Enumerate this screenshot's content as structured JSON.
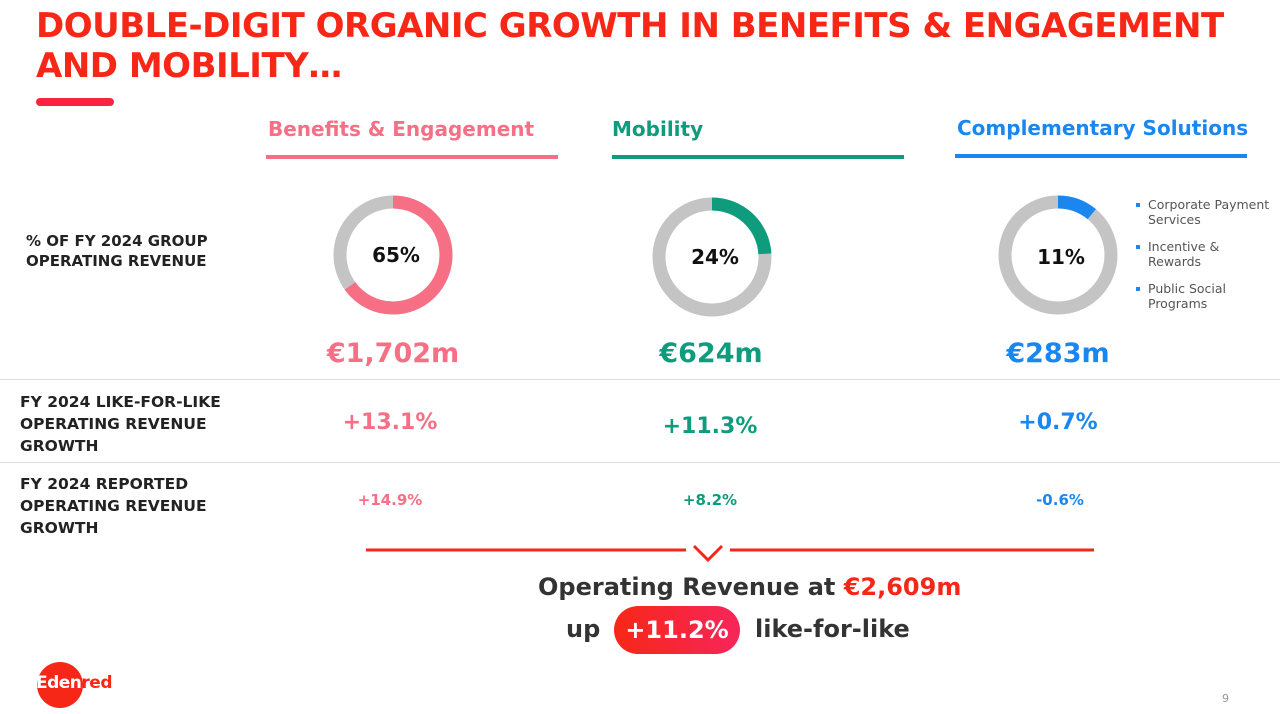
{
  "title": "DOUBLE-DIGIT ORGANIC GROWTH IN BENEFITS & ENGAGEMENT AND MOBILITY…",
  "colors": {
    "brand": "#f72717",
    "benefits": "#f66f85",
    "mobility": "#0e9c7c",
    "complementary": "#1a87f0",
    "track": "#c4c4c4"
  },
  "row_labels": {
    "share": "% OF FY 2024 GROUP OPERATING REVENUE",
    "lfl": "FY 2024 LIKE-FOR-LIKE OPERATING REVENUE GROWTH",
    "reported": "FY 2024 REPORTED OPERATING REVENUE GROWTH"
  },
  "columns": [
    {
      "name": "Benefits & Engagement",
      "share_label": "65%",
      "share": 65,
      "amount": "€1,702m",
      "lfl": "+13.1%",
      "reported": "+14.9%"
    },
    {
      "name": "Mobility",
      "share_label": "24%",
      "share": 24,
      "amount": "€624m",
      "lfl": "+11.3%",
      "reported": "+8.2%"
    },
    {
      "name": "Complementary Solutions",
      "share_label": "11%",
      "share": 11,
      "amount": "€283m",
      "lfl": "+0.7%",
      "reported": "-0.6%"
    }
  ],
  "legend": [
    "Corporate Payment Services",
    "Incentive & Rewards",
    "Public Social Programs"
  ],
  "summary": {
    "line1": "Operating Revenue at ",
    "total": "€2,609m",
    "up": "up",
    "badge": "+11.2%",
    "lfl": "like-for-like"
  },
  "logo": "Edenred",
  "page_number": "9"
}
